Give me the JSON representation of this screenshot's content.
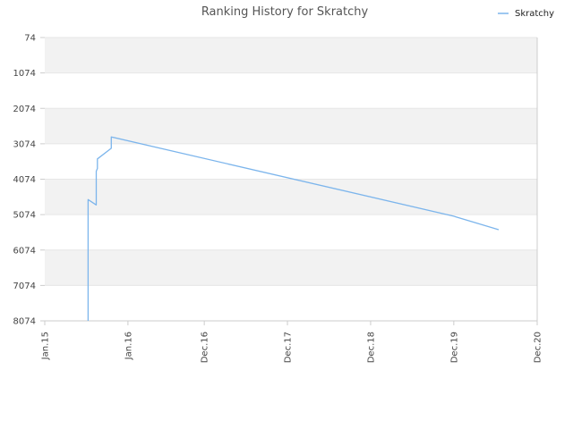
{
  "chart_data": {
    "type": "line",
    "title": "Ranking History for Skratchy",
    "xlabel": "",
    "ylabel": "",
    "y_inverted": true,
    "ylim": [
      74,
      8074
    ],
    "y_ticks": [
      74,
      1074,
      2074,
      3074,
      4074,
      5074,
      6074,
      7074,
      8074
    ],
    "y_tick_labels": [
      "74",
      "1074",
      "2074",
      "3074",
      "4074",
      "5074",
      "6074",
      "7074",
      "8074"
    ],
    "xlim": [
      "2015-01",
      "2020-12"
    ],
    "x_ticks": [
      "2015-01",
      "2016-01",
      "2016-12",
      "2017-12",
      "2018-12",
      "2019-12",
      "2020-12"
    ],
    "x_tick_labels": [
      "Jan.15",
      "Jan.16",
      "Dec.16",
      "Dec.17",
      "Dec.18",
      "Dec.19",
      "Dec.20"
    ],
    "grid": "horizontal bands",
    "legend_position": "top-right",
    "series": [
      {
        "name": "Skratchy",
        "color": "#7cb5ec",
        "x": [
          "2015-07-10",
          "2015-07-10",
          "2015-08-15",
          "2015-08-15",
          "2015-08-20",
          "2015-08-20",
          "2015-10-20",
          "2015-10-20",
          "2019-12-01",
          "2020-06-15"
        ],
        "y": [
          8074,
          4650,
          4800,
          3850,
          3770,
          3500,
          3200,
          2880,
          5120,
          5500
        ]
      }
    ]
  }
}
